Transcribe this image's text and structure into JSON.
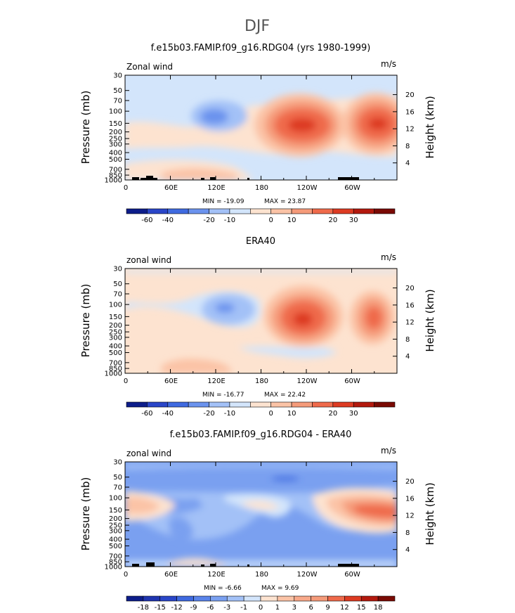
{
  "figure": {
    "suptitle": "DJF",
    "colors": {
      "blue5": "#0d1d8a",
      "blue4": "#2a46c8",
      "blue3": "#3f6ae0",
      "blue2": "#6b93ee",
      "blue1": "#a3c1f7",
      "blue0": "#d3e5fb",
      "red0": "#fde3d0",
      "red1": "#fbc3a6",
      "red2": "#f59b7a",
      "red3": "#ef6a4b",
      "red4": "#dd3b22",
      "red5": "#b3190e",
      "red6": "#7a0a04"
    }
  },
  "chart_data": [
    {
      "type": "heatmap",
      "title": "f.e15b03.FAMIP.f09_g16.RDG04 (yrs 1980-1999)",
      "left_label": "Zonal wind",
      "right_label": "m/s",
      "ylabel": "Pressure (mb)",
      "ylabel_right": "Height (km)",
      "yticks": [
        "30",
        "50",
        "70",
        "100",
        "150",
        "200",
        "250",
        "300",
        "400",
        "500",
        "700",
        "850",
        "1000"
      ],
      "yticks_right": [
        "20",
        "16",
        "12",
        "8",
        "4"
      ],
      "xticks": [
        "0",
        "60E",
        "120E",
        "180",
        "120W",
        "60W"
      ],
      "min_label": "MIN = -19.09",
      "max_label": "MAX = 23.87",
      "colorbar_levels": [
        "-60",
        "-40",
        "-20",
        "-10",
        "0",
        "10",
        "20",
        "30"
      ],
      "colorbar_colors": [
        "#0d1d8a",
        "#2a46c8",
        "#3f6ae0",
        "#6b93ee",
        "#a3c1f7",
        "#d3e5fb",
        "#fde3d0",
        "#fbc3a6",
        "#f59b7a",
        "#ef6a4b",
        "#dd3b22",
        "#b3190e",
        "#7a0a04"
      ]
    },
    {
      "type": "heatmap",
      "title": "ERA40",
      "left_label": "zonal wind",
      "right_label": "m/s",
      "ylabel": "Pressure (mb)",
      "ylabel_right": "Height (km)",
      "yticks": [
        "30",
        "50",
        "70",
        "100",
        "150",
        "200",
        "250",
        "300",
        "400",
        "500",
        "700",
        "850",
        "1000"
      ],
      "yticks_right": [
        "20",
        "16",
        "12",
        "8",
        "4"
      ],
      "xticks": [
        "0",
        "60E",
        "120E",
        "180",
        "120W",
        "60W"
      ],
      "min_label": "MIN = -16.77",
      "max_label": "MAX = 22.42",
      "colorbar_levels": [
        "-60",
        "-40",
        "-20",
        "-10",
        "0",
        "10",
        "20",
        "30"
      ],
      "colorbar_colors": [
        "#0d1d8a",
        "#2a46c8",
        "#3f6ae0",
        "#6b93ee",
        "#a3c1f7",
        "#d3e5fb",
        "#fde3d0",
        "#fbc3a6",
        "#f59b7a",
        "#ef6a4b",
        "#dd3b22",
        "#b3190e",
        "#7a0a04"
      ]
    },
    {
      "type": "heatmap",
      "title": "f.e15b03.FAMIP.f09_g16.RDG04 - ERA40",
      "left_label": "zonal wind",
      "right_label": "m/s",
      "ylabel": "Pressure (mb)",
      "ylabel_right": "Height (km)",
      "yticks": [
        "30",
        "50",
        "70",
        "100",
        "150",
        "200",
        "250",
        "300",
        "400",
        "500",
        "700",
        "850",
        "1000"
      ],
      "yticks_right": [
        "20",
        "16",
        "12",
        "8",
        "4"
      ],
      "xticks": [
        "0",
        "60E",
        "120E",
        "180",
        "120W",
        "60W"
      ],
      "min_label": "MIN = -6.66",
      "max_label": "MAX = 9.69",
      "colorbar_levels": [
        "-18",
        "-15",
        "-12",
        "-9",
        "-6",
        "-3",
        "-1",
        "0",
        "1",
        "3",
        "6",
        "9",
        "12",
        "15",
        "18"
      ],
      "colorbar_colors": [
        "#0d1d8a",
        "#1f35b0",
        "#2a46c8",
        "#3f6ae0",
        "#5a84ea",
        "#7aa0f0",
        "#a3c1f7",
        "#d3e5fb",
        "#fde3d0",
        "#fbc3a6",
        "#f8a98a",
        "#f59b7a",
        "#ef6a4b",
        "#dd3b22",
        "#b3190e",
        "#7a0a04"
      ]
    }
  ]
}
